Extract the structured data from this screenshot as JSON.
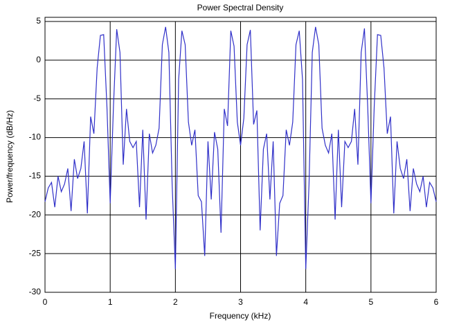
{
  "chart_data": {
    "type": "line",
    "title": "Power Spectral Density",
    "x_label": "Frequency (kHz)",
    "y_label": "Power/frequency (dB/Hz)",
    "xlim": [
      0,
      6
    ],
    "xticks": [
      0,
      1,
      2,
      3,
      4,
      5,
      6
    ],
    "ylim": [
      -30,
      5
    ],
    "yticks": [
      -30,
      -25,
      -20,
      -15,
      -10,
      -5,
      0,
      5
    ],
    "grid": true,
    "x": [
      0,
      0.05,
      0.1,
      0.15,
      0.2,
      0.25,
      0.3,
      0.35,
      0.4,
      0.45,
      0.5,
      0.55,
      0.6,
      0.65,
      0.7,
      0.75,
      0.8,
      0.85,
      0.9,
      0.95,
      1,
      1.05,
      1.1,
      1.15,
      1.2,
      1.25,
      1.3,
      1.35,
      1.4,
      1.45,
      1.5,
      1.55,
      1.6,
      1.65,
      1.7,
      1.75,
      1.8,
      1.85,
      1.9,
      1.95,
      2,
      2.05,
      2.1,
      2.15,
      2.2,
      2.25,
      2.3,
      2.35,
      2.4,
      2.45,
      2.5,
      2.55,
      2.6,
      2.65,
      2.7,
      2.75,
      2.8,
      2.85,
      2.9,
      2.95,
      3,
      3.05,
      3.1,
      3.15,
      3.2,
      3.25,
      3.3,
      3.35,
      3.4,
      3.45,
      3.5,
      3.55,
      3.6,
      3.65,
      3.7,
      3.75,
      3.8,
      3.85,
      3.9,
      3.95,
      4,
      4.05,
      4.1,
      4.15,
      4.2,
      4.25,
      4.3,
      4.35,
      4.4,
      4.45,
      4.5,
      4.55,
      4.6,
      4.65,
      4.7,
      4.75,
      4.8,
      4.85,
      4.9,
      4.95,
      5,
      5.05,
      5.1,
      5.15,
      5.2,
      5.25,
      5.3,
      5.35,
      5.4,
      5.45,
      5.5,
      5.55,
      5.6,
      5.65,
      5.7,
      5.75,
      5.8,
      5.85,
      5.9,
      5.95,
      6
    ],
    "series": [
      {
        "color": "#2f2fc8",
        "values": [
          -18.3,
          -16.5,
          -15.8,
          -19,
          -15,
          -17,
          -16,
          -14,
          -19.5,
          -12.8,
          -15.3,
          -14,
          -10.5,
          -19.8,
          -7.3,
          -9.5,
          -1,
          3.2,
          3.3,
          -6,
          -18.5,
          -6,
          4,
          1,
          -13.5,
          -6.3,
          -10.5,
          -11.3,
          -10.5,
          -19,
          -9,
          -20.6,
          -9.5,
          -12,
          -11,
          -8.8,
          2,
          4.3,
          1,
          -16,
          -27,
          -2.5,
          3.8,
          2,
          -8,
          -11,
          -9,
          -17.5,
          -18.3,
          -25.3,
          -10.5,
          -18,
          -9.3,
          -11.5,
          -22.3,
          -6.3,
          -8.5,
          3.8,
          1.8,
          -8,
          -11,
          -7.5,
          2,
          3.9,
          -8.3,
          -6.5,
          -22,
          -11.5,
          -9.5,
          -18,
          -10.5,
          -25.3,
          -18.5,
          -17.5,
          -9,
          -11,
          -8,
          2,
          3.8,
          -2.5,
          -27,
          -16,
          1,
          4.3,
          2,
          -8.8,
          -11,
          -12,
          -9.5,
          -20.6,
          -9,
          -19,
          -10.5,
          -11.3,
          -10.5,
          -6.3,
          -13.5,
          1,
          4.1,
          -6,
          -18.5,
          -6,
          3.3,
          3.2,
          -1,
          -9.5,
          -7.3,
          -19.8,
          -10.5,
          -14,
          -15.3,
          -12.8,
          -19.5,
          -14,
          -16,
          -17,
          -15,
          -19,
          -15.8,
          -16.5,
          -18.3
        ]
      }
    ]
  }
}
